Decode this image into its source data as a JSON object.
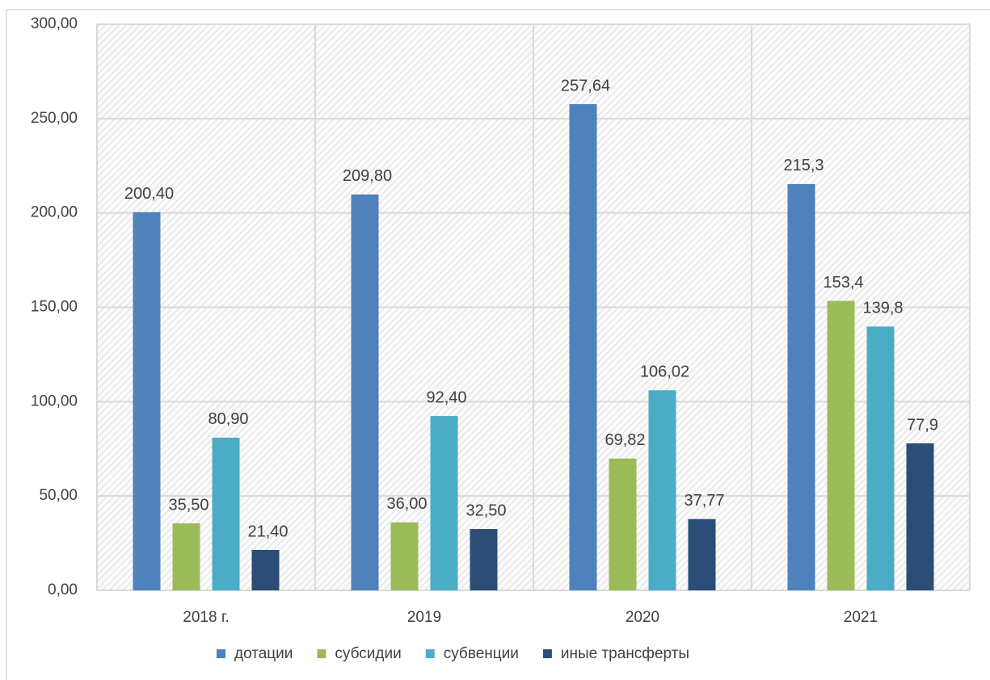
{
  "chart_data": {
    "type": "bar",
    "categories": [
      "2018 г.",
      "2019",
      "2020",
      "2021"
    ],
    "series": [
      {
        "name": "дотации",
        "color": "#4f81bd",
        "values": [
          200.4,
          209.8,
          257.64,
          215.3
        ],
        "value_labels": [
          "200,40",
          "209,80",
          "257,64",
          "215,3"
        ]
      },
      {
        "name": "субсидии",
        "color": "#9bbb59",
        "values": [
          35.5,
          36,
          69.82,
          153.4
        ],
        "value_labels": [
          "35,50",
          "36,00",
          "69,82",
          "153,4"
        ]
      },
      {
        "name": "субвенции",
        "color": "#4bacc6",
        "values": [
          80.9,
          92.4,
          106.02,
          139.8
        ],
        "value_labels": [
          "80,90",
          "92,40",
          "106,02",
          "139,8"
        ]
      },
      {
        "name": "иные трансферты",
        "color": "#2c4d75",
        "values": [
          21.4,
          32.5,
          37.77,
          77.9
        ],
        "value_labels": [
          "21,40",
          "32,50",
          "37,77",
          "77,9"
        ]
      }
    ],
    "ylim": [
      0,
      300
    ],
    "yticks": [
      {
        "value": 0,
        "label": "0,00"
      },
      {
        "value": 50,
        "label": "50,00"
      },
      {
        "value": 100,
        "label": "100,00"
      },
      {
        "value": 150,
        "label": "150,00"
      },
      {
        "value": 200,
        "label": "200,00"
      },
      {
        "value": 250,
        "label": "250,00"
      },
      {
        "value": 300,
        "label": "300,00"
      }
    ],
    "grid": true,
    "legend": "bottom"
  }
}
